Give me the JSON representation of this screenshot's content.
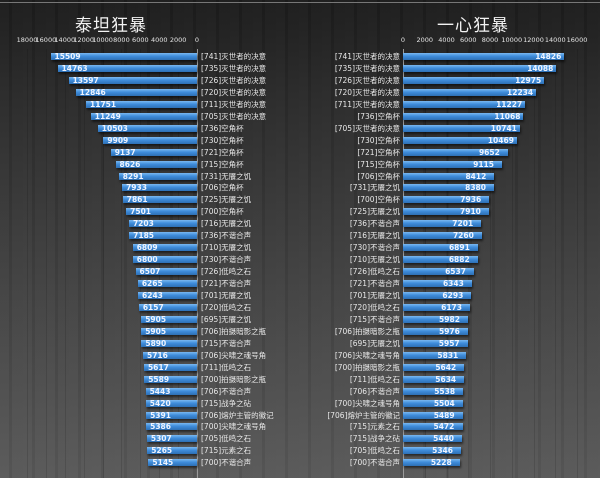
{
  "charts": {
    "left": {
      "title": "泰坦狂暴",
      "ticks": [
        "18000",
        "16000",
        "14000",
        "12000",
        "10000",
        "8000",
        "6000",
        "4000",
        "2000",
        "0"
      ]
    },
    "right": {
      "title": "一心狂暴",
      "ticks": [
        "0",
        "2000",
        "4000",
        "6000",
        "8000",
        "10000",
        "12000",
        "14000",
        "16000"
      ]
    }
  },
  "colors": {
    "bar": "#3f8ddb",
    "background_top": "#1c1c1c",
    "background_bottom": "#595959",
    "text": "#e8e8e8"
  },
  "chart_data": [
    {
      "type": "bar",
      "orientation": "horizontal",
      "title": "泰坦狂暴",
      "xlabel": "",
      "ylabel": "",
      "xlim": [
        0,
        18000
      ],
      "axis_reversed": true,
      "grid": true,
      "categories": [
        "[741]灭世者的决意",
        "[735]灭世者的决意",
        "[726]灭世者的决意",
        "[720]灭世者的决意",
        "[711]灭世者的决意",
        "[705]灭世者的决意",
        "[736]空角杯",
        "[730]空角杯",
        "[721]空角杯",
        "[715]空角杯",
        "[731]无餍之饥",
        "[706]空角杯",
        "[725]无餍之饥",
        "[700]空角杯",
        "[716]无餍之饥",
        "[736]不谐合声",
        "[710]无餍之饥",
        "[730]不谐合声",
        "[726]低鸣之石",
        "[721]不谐合声",
        "[701]无餍之饥",
        "[720]低鸣之石",
        "[695]无餍之饥",
        "[706]拍摄暗影之瓶",
        "[715]不谐合声",
        "[706]尖啸之魂号角",
        "[711]低鸣之石",
        "[700]拍摄暗影之瓶",
        "[706]不谐合声",
        "[715]战争之砧",
        "[706]熔炉主管的徽记",
        "[700]尖啸之魂号角",
        "[705]低鸣之石",
        "[715]元素之石",
        "[700]不谐合声"
      ],
      "values": [
        15509,
        14763,
        13597,
        12846,
        11751,
        11249,
        10503,
        9909,
        9137,
        8626,
        8291,
        7933,
        7861,
        7501,
        7203,
        7185,
        6809,
        6800,
        6507,
        6265,
        6243,
        6157,
        5905,
        5905,
        5890,
        5716,
        5617,
        5589,
        5443,
        5420,
        5391,
        5386,
        5307,
        5265,
        5145
      ]
    },
    {
      "type": "bar",
      "orientation": "horizontal",
      "title": "一心狂暴",
      "xlabel": "",
      "ylabel": "",
      "xlim": [
        0,
        16000
      ],
      "axis_reversed": false,
      "grid": true,
      "categories": [
        "[741]灭世者的决意",
        "[735]灭世者的决意",
        "[726]灭世者的决意",
        "[720]灭世者的决意",
        "[711]灭世者的决意",
        "[736]空角杯",
        "[705]灭世者的决意",
        "[730]空角杯",
        "[721]空角杯",
        "[715]空角杯",
        "[706]空角杯",
        "[731]无餍之饥",
        "[700]空角杯",
        "[725]无餍之饥",
        "[736]不谐合声",
        "[716]无餍之饥",
        "[730]不谐合声",
        "[710]无餍之饥",
        "[726]低鸣之石",
        "[721]不谐合声",
        "[701]无餍之饥",
        "[720]低鸣之石",
        "[715]不谐合声",
        "[706]拍摄暗影之瓶",
        "[695]无餍之饥",
        "[706]尖啸之魂号角",
        "[700]拍摄暗影之瓶",
        "[711]低鸣之石",
        "[706]不谐合声",
        "[700]尖啸之魂号角",
        "[706]熔炉主管的徽记",
        "[715]元素之石",
        "[715]战争之砧",
        "[705]低鸣之石",
        "[700]不谐合声"
      ],
      "values": [
        14826,
        14088,
        12975,
        12234,
        11227,
        11068,
        10741,
        10469,
        9652,
        9115,
        8412,
        8380,
        7936,
        7910,
        7201,
        7260,
        6891,
        6882,
        6537,
        6343,
        6293,
        6173,
        5982,
        5976,
        5957,
        5831,
        5642,
        5634,
        5538,
        5504,
        5489,
        5472,
        5440,
        5346,
        5228
      ]
    }
  ]
}
